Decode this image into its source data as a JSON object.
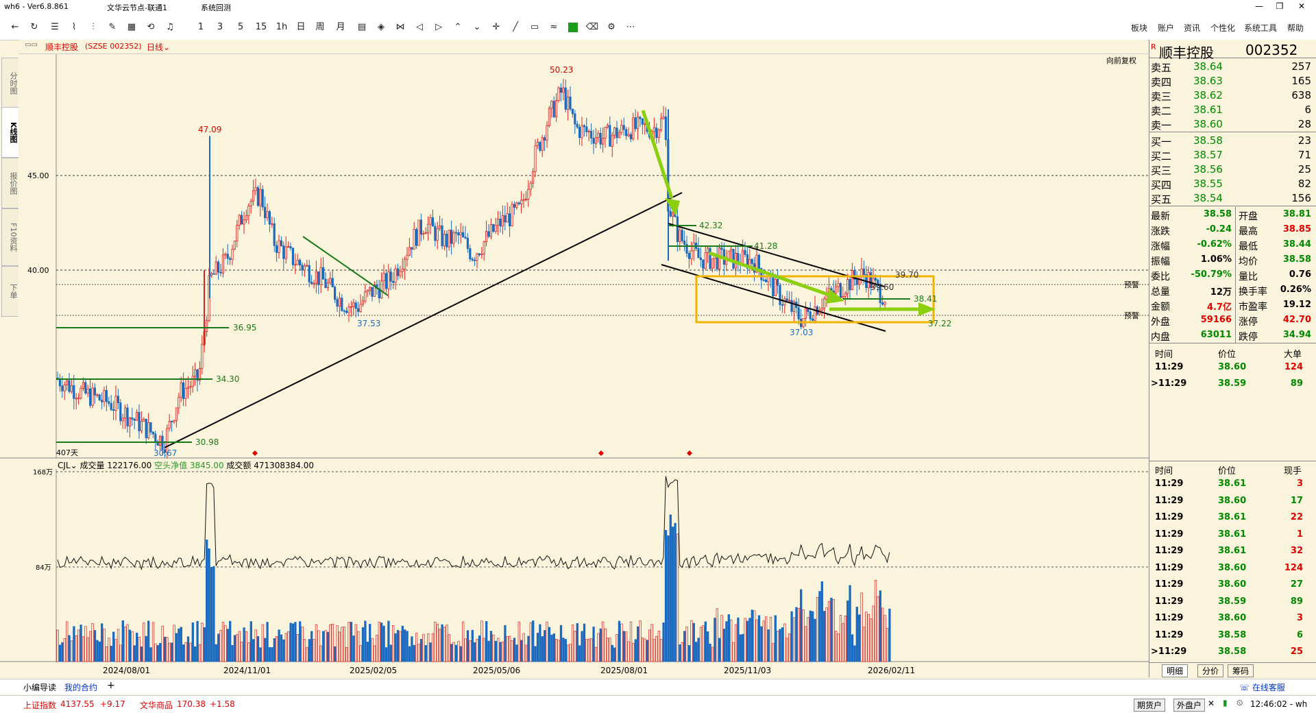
{
  "window": {
    "app": "wh6 - Ver6.8.861",
    "node": "文华云节点-联通1",
    "menu_test": "系统回测",
    "minimize": "—",
    "restore": "❐",
    "close": "✕"
  },
  "toolbar": {
    "periods": [
      "1",
      "3",
      "5",
      "15",
      "1h",
      "日",
      "周",
      "月"
    ],
    "right_menu": [
      "板块",
      "账户",
      "资讯",
      "个性化",
      "系统工具",
      "帮助"
    ]
  },
  "left_tabs": [
    "分时图",
    "K线图",
    "报价图",
    "F10资料",
    "下单"
  ],
  "chart_header": {
    "stock": "顺丰控股",
    "code": "(SZSE 002352)",
    "period": "日线",
    "adjust_label": "向前复权"
  },
  "price_axis": [
    "45.00",
    "40.00"
  ],
  "alerts": [
    "预警",
    "预警"
  ],
  "annotations": {
    "high": "50.23",
    "spike": "47.09",
    "low1": "37.53",
    "low_start": "30.67",
    "lv_3695": "36.95",
    "lv_3430": "34.30",
    "lv_3098": "30.98",
    "lv_4232": "42.32",
    "lv_4128": "41.28",
    "lv_3970": "39.70",
    "lv_3960": "39.60",
    "lv_3841": "38.41",
    "lv_3722": "37.22",
    "low2": "37.03",
    "days": "407天"
  },
  "volume_pane": {
    "indicator": "CJL",
    "vol_label": "成交量",
    "vol_value": "122176.00",
    "net_label": "空头净值",
    "net_value": "3845.00",
    "amount_label": "成交额",
    "amount_value": "471308384.00",
    "axis_top": "168万",
    "axis_mid": "84万"
  },
  "dates": [
    "2024/08/01",
    "2024/11/01",
    "2025/02/05",
    "2025/05/06",
    "2025/08/01",
    "2025/11/03",
    "2026/02/11"
  ],
  "quote": {
    "icon": "R",
    "name": "顺丰控股",
    "code": "002352",
    "asks": [
      {
        "label": "卖五",
        "price": "38.64",
        "vol": "257"
      },
      {
        "label": "卖四",
        "price": "38.63",
        "vol": "165"
      },
      {
        "label": "卖三",
        "price": "38.62",
        "vol": "638"
      },
      {
        "label": "卖二",
        "price": "38.61",
        "vol": "6"
      },
      {
        "label": "卖一",
        "price": "38.60",
        "vol": "28"
      }
    ],
    "bids": [
      {
        "label": "买一",
        "price": "38.58",
        "vol": "23"
      },
      {
        "label": "买二",
        "price": "38.57",
        "vol": "71"
      },
      {
        "label": "买三",
        "price": "38.56",
        "vol": "25"
      },
      {
        "label": "买四",
        "price": "38.55",
        "vol": "82"
      },
      {
        "label": "买五",
        "price": "38.54",
        "vol": "156"
      }
    ],
    "stats": [
      {
        "l1": "最新",
        "v1": "38.58",
        "l2": "开盘",
        "v2": "38.81"
      },
      {
        "l1": "涨跌",
        "v1": "-0.24",
        "l2": "最高",
        "v2": "38.85"
      },
      {
        "l1": "涨幅",
        "v1": "-0.62%",
        "l2": "最低",
        "v2": "38.44"
      },
      {
        "l1": "振幅",
        "v1": "1.06%",
        "l2": "均价",
        "v2": "38.58"
      },
      {
        "l1": "委比",
        "v1": "-50.79%",
        "l2": "量比",
        "v2": "0.76"
      },
      {
        "l1": "总量",
        "v1": "12万",
        "l2": "换手率",
        "v2": "0.26%"
      },
      {
        "l1": "金额",
        "v1": "4.7亿",
        "l2": "市盈率",
        "v2": "19.12"
      },
      {
        "l1": "外盘",
        "v1": "59166",
        "l2": "涨停",
        "v2": "42.70"
      },
      {
        "l1": "内盘",
        "v1": "63011",
        "l2": "跌停",
        "v2": "34.94"
      }
    ],
    "big_header": {
      "time": "时间",
      "price": "价位",
      "vol": "大单"
    },
    "big_trades": [
      {
        "time": "11:29",
        "price": "38.60",
        "vol": "124"
      },
      {
        "time": ">11:29",
        "price": "38.59",
        "vol": "89"
      }
    ],
    "tick_header": {
      "time": "时间",
      "price": "价位",
      "vol": "现手"
    },
    "ticks": [
      {
        "time": "11:29",
        "price": "38.61",
        "vol": "3"
      },
      {
        "time": "11:29",
        "price": "38.60",
        "vol": "17"
      },
      {
        "time": "11:29",
        "price": "38.61",
        "vol": "22"
      },
      {
        "time": "11:29",
        "price": "38.61",
        "vol": "1"
      },
      {
        "time": "11:29",
        "price": "38.61",
        "vol": "32"
      },
      {
        "time": "11:29",
        "price": "38.60",
        "vol": "124"
      },
      {
        "time": "11:29",
        "price": "38.60",
        "vol": "27"
      },
      {
        "time": "11:29",
        "price": "38.59",
        "vol": "89"
      },
      {
        "time": "11:29",
        "price": "38.60",
        "vol": "3"
      },
      {
        "time": "11:29",
        "price": "38.58",
        "vol": "6"
      },
      {
        "time": ">11:29",
        "price": "38.58",
        "vol": "25"
      }
    ],
    "tabs": [
      "明细",
      "分价",
      "筹码"
    ]
  },
  "bottom": {
    "guide": "小编导读",
    "my_contract": "我的合约",
    "add": "+",
    "online_service": "在线客服",
    "idx1_name": "上证指数",
    "idx1_val": "4137.55",
    "idx1_chg": "+9.17",
    "idx2_name": "文华商品",
    "idx2_val": "170.38",
    "idx2_chg": "+1.58",
    "futures": "期货户",
    "outer": "外盘户",
    "time": "12:46:02 - wh"
  }
}
